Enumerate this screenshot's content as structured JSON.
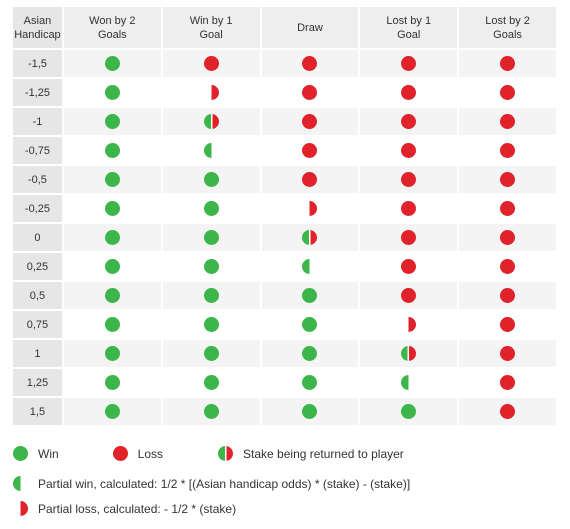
{
  "header": {
    "col0": "Asian\nHandicap",
    "cols": [
      "Won by 2\nGoals",
      "Win by 1\nGoal",
      "Draw",
      "Lost by 1\nGoal",
      "Lost by 2\nGoals"
    ]
  },
  "rows": [
    {
      "handicap": "-1,5",
      "results": [
        "win",
        "loss",
        "loss",
        "loss",
        "loss"
      ]
    },
    {
      "handicap": "-1,25",
      "results": [
        "win",
        "partial-loss",
        "loss",
        "loss",
        "loss"
      ]
    },
    {
      "handicap": "-1",
      "results": [
        "win",
        "stake-returned",
        "loss",
        "loss",
        "loss"
      ]
    },
    {
      "handicap": "-0,75",
      "results": [
        "win",
        "partial-win",
        "loss",
        "loss",
        "loss"
      ]
    },
    {
      "handicap": "-0,5",
      "results": [
        "win",
        "win",
        "loss",
        "loss",
        "loss"
      ]
    },
    {
      "handicap": "-0,25",
      "results": [
        "win",
        "win",
        "partial-loss",
        "loss",
        "loss"
      ]
    },
    {
      "handicap": "0",
      "results": [
        "win",
        "win",
        "stake-returned",
        "loss",
        "loss"
      ]
    },
    {
      "handicap": "0,25",
      "results": [
        "win",
        "win",
        "partial-win",
        "loss",
        "loss"
      ]
    },
    {
      "handicap": "0,5",
      "results": [
        "win",
        "win",
        "win",
        "loss",
        "loss"
      ]
    },
    {
      "handicap": "0,75",
      "results": [
        "win",
        "win",
        "win",
        "partial-loss",
        "loss"
      ]
    },
    {
      "handicap": "1",
      "results": [
        "win",
        "win",
        "win",
        "stake-returned",
        "loss"
      ]
    },
    {
      "handicap": "1,25",
      "results": [
        "win",
        "win",
        "win",
        "partial-win",
        "loss"
      ]
    },
    {
      "handicap": "1,5",
      "results": [
        "win",
        "win",
        "win",
        "win",
        "loss"
      ]
    }
  ],
  "legend": {
    "win": "Win",
    "loss": "Loss",
    "stake_returned": "Stake being returned to player",
    "partial_win": "Partial win, calculated: 1/2 * [(Asian handicap odds) * (stake) - (stake)]",
    "partial_loss": "Partial loss, calculated: - 1/2 * (stake)"
  },
  "colors": {
    "win": "#3cb54a",
    "loss": "#e0232a"
  }
}
